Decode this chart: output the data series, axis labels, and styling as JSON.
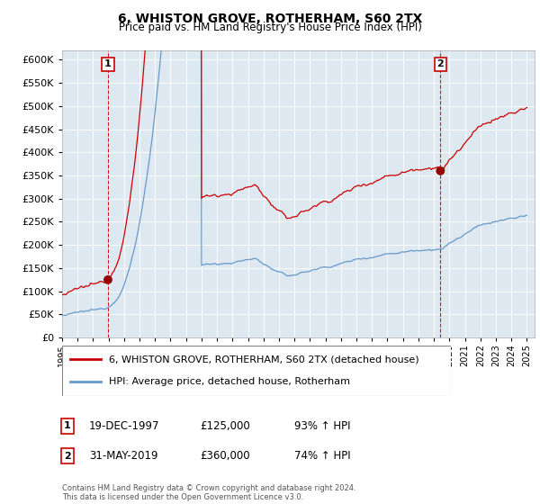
{
  "title": "6, WHISTON GROVE, ROTHERHAM, S60 2TX",
  "subtitle": "Price paid vs. HM Land Registry's House Price Index (HPI)",
  "ylim": [
    0,
    620000
  ],
  "xlim_start": 1995.0,
  "xlim_end": 2025.5,
  "purchase1_date": 1997.96,
  "purchase1_price": 125000,
  "purchase2_date": 2019.42,
  "purchase2_price": 360000,
  "legend_line1": "6, WHISTON GROVE, ROTHERHAM, S60 2TX (detached house)",
  "legend_line2": "HPI: Average price, detached house, Rotherham",
  "annotation1_date": "19-DEC-1997",
  "annotation1_price": "£125,000",
  "annotation1_hpi": "93% ↑ HPI",
  "annotation2_date": "31-MAY-2019",
  "annotation2_price": "£360,000",
  "annotation2_hpi": "74% ↑ HPI",
  "footer": "Contains HM Land Registry data © Crown copyright and database right 2024.\nThis data is licensed under the Open Government Licence v3.0.",
  "line_color_red": "#cc0000",
  "line_color_blue": "#6699cc",
  "dashed_line_color": "#cc0000",
  "plot_bg_color": "#dde8f0",
  "fig_bg_color": "#ffffff",
  "grid_color": "#ffffff"
}
